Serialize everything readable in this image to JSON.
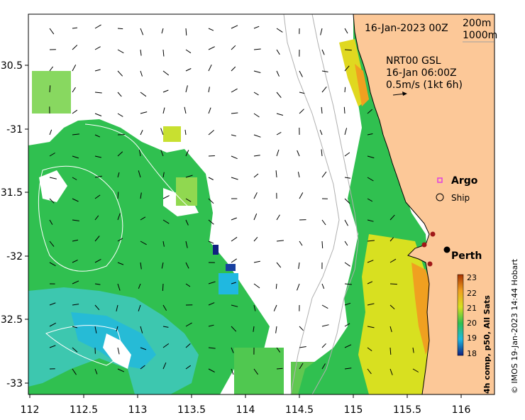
{
  "map": {
    "date_label": "16-Jan-2023 00Z",
    "contours": {
      "c1": "200m",
      "c2": "1000m"
    },
    "current_info": {
      "line1": "NRT00 GSL",
      "line2": "16-Jan 06:00Z",
      "line3": "0.5m/s (1kt 6h)"
    },
    "legend": {
      "argo": "Argo",
      "ship": "Ship"
    },
    "city": "Perth",
    "colorbar": {
      "title": "4h comp, p50, All Sats",
      "ticks": [
        "23",
        "22",
        "21",
        "20",
        "19",
        "18"
      ],
      "colors": {
        "t23": "#a83200",
        "t22": "#f0a020",
        "t21": "#d8e020",
        "t20": "#30c050",
        "t19": "#20b8e0",
        "t18": "#102080"
      }
    },
    "credit": "© IMOS 19-Jan-2023 14:44 Hobart",
    "axes": {
      "lon": [
        "112",
        "112.5",
        "113",
        "113.5",
        "114",
        "114.5",
        "115",
        "115.5",
        "116"
      ],
      "lat": [
        "30.5",
        "-31",
        "31.5",
        "-32",
        "32.5",
        "-33"
      ]
    },
    "colors": {
      "land": "#fcc898",
      "ocean_no_data": "#ffffff",
      "marker_city": "#000000",
      "marker_argo": "#e040e0"
    }
  }
}
